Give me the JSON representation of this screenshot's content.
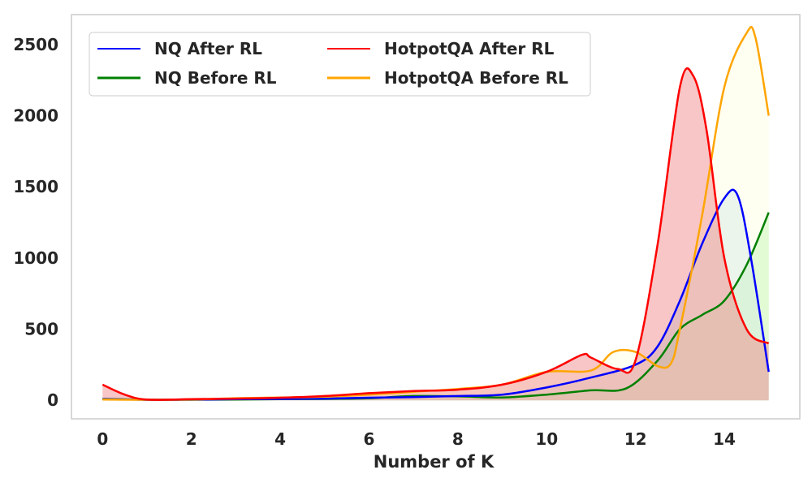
{
  "chart_data": {
    "type": "area",
    "title": "",
    "xlabel": "Number of K",
    "ylabel": "",
    "xlim": [
      -0.7,
      15.7
    ],
    "ylim": [
      -130,
      2710
    ],
    "grid": false,
    "legend_position": "top-left",
    "x_ticks": [
      0,
      2,
      4,
      6,
      8,
      10,
      12,
      14
    ],
    "y_ticks": [
      0,
      500,
      1000,
      1500,
      2000,
      2500
    ],
    "series": [
      {
        "name": "NQ Before RL",
        "color": "#008000",
        "fill": "#90ee90",
        "points": [
          [
            0,
            10
          ],
          [
            1,
            4
          ],
          [
            2,
            4
          ],
          [
            3,
            5
          ],
          [
            4,
            8
          ],
          [
            5,
            10
          ],
          [
            6,
            15
          ],
          [
            7,
            30
          ],
          [
            8,
            28
          ],
          [
            9,
            20
          ],
          [
            10,
            40
          ],
          [
            11,
            70
          ],
          [
            11.8,
            85
          ],
          [
            12.5,
            280
          ],
          [
            13,
            500
          ],
          [
            13.5,
            600
          ],
          [
            14,
            700
          ],
          [
            14.5,
            950
          ],
          [
            15,
            1320
          ]
        ]
      },
      {
        "name": "NQ After RL",
        "color": "#0000ff",
        "fill": "#add8e6",
        "points": [
          [
            0,
            8
          ],
          [
            1,
            4
          ],
          [
            2,
            4
          ],
          [
            3,
            8
          ],
          [
            4,
            10
          ],
          [
            5,
            12
          ],
          [
            6,
            18
          ],
          [
            7,
            22
          ],
          [
            8,
            30
          ],
          [
            9,
            40
          ],
          [
            10,
            90
          ],
          [
            11,
            160
          ],
          [
            12,
            250
          ],
          [
            12.5,
            380
          ],
          [
            13,
            700
          ],
          [
            13.5,
            1100
          ],
          [
            14,
            1420
          ],
          [
            14.3,
            1440
          ],
          [
            14.6,
            1000
          ],
          [
            15,
            200
          ]
        ]
      },
      {
        "name": "HotpotQA Before RL",
        "color": "#ffa500",
        "fill": "#ffffe0",
        "points": [
          [
            0,
            5
          ],
          [
            1,
            4
          ],
          [
            2,
            5
          ],
          [
            3,
            15
          ],
          [
            4,
            20
          ],
          [
            5,
            25
          ],
          [
            6,
            40
          ],
          [
            7,
            60
          ],
          [
            8,
            80
          ],
          [
            9,
            110
          ],
          [
            10,
            200
          ],
          [
            11,
            210
          ],
          [
            11.5,
            340
          ],
          [
            12,
            340
          ],
          [
            12.5,
            240
          ],
          [
            12.8,
            260
          ],
          [
            13,
            500
          ],
          [
            13.5,
            1300
          ],
          [
            14,
            2200
          ],
          [
            14.5,
            2580
          ],
          [
            14.7,
            2550
          ],
          [
            15,
            2000
          ]
        ]
      },
      {
        "name": "HotpotQA After RL",
        "color": "#ff0000",
        "fill": "#f08080",
        "points": [
          [
            0,
            110
          ],
          [
            0.5,
            40
          ],
          [
            1,
            5
          ],
          [
            2,
            8
          ],
          [
            3,
            12
          ],
          [
            4,
            18
          ],
          [
            5,
            30
          ],
          [
            6,
            50
          ],
          [
            7,
            65
          ],
          [
            8,
            75
          ],
          [
            9,
            110
          ],
          [
            10,
            200
          ],
          [
            10.8,
            320
          ],
          [
            11,
            300
          ],
          [
            11.6,
            220
          ],
          [
            12,
            280
          ],
          [
            12.5,
            1100
          ],
          [
            13,
            2200
          ],
          [
            13.3,
            2280
          ],
          [
            13.6,
            1900
          ],
          [
            14,
            1000
          ],
          [
            14.5,
            500
          ],
          [
            15,
            400
          ]
        ]
      }
    ]
  },
  "legend_items": [
    {
      "name": "NQ After RL",
      "color": "#0000ff"
    },
    {
      "name": "NQ Before RL",
      "color": "#008000"
    },
    {
      "name": "HotpotQA After RL",
      "color": "#ff0000"
    },
    {
      "name": "HotpotQA Before RL",
      "color": "#ffa500"
    }
  ]
}
